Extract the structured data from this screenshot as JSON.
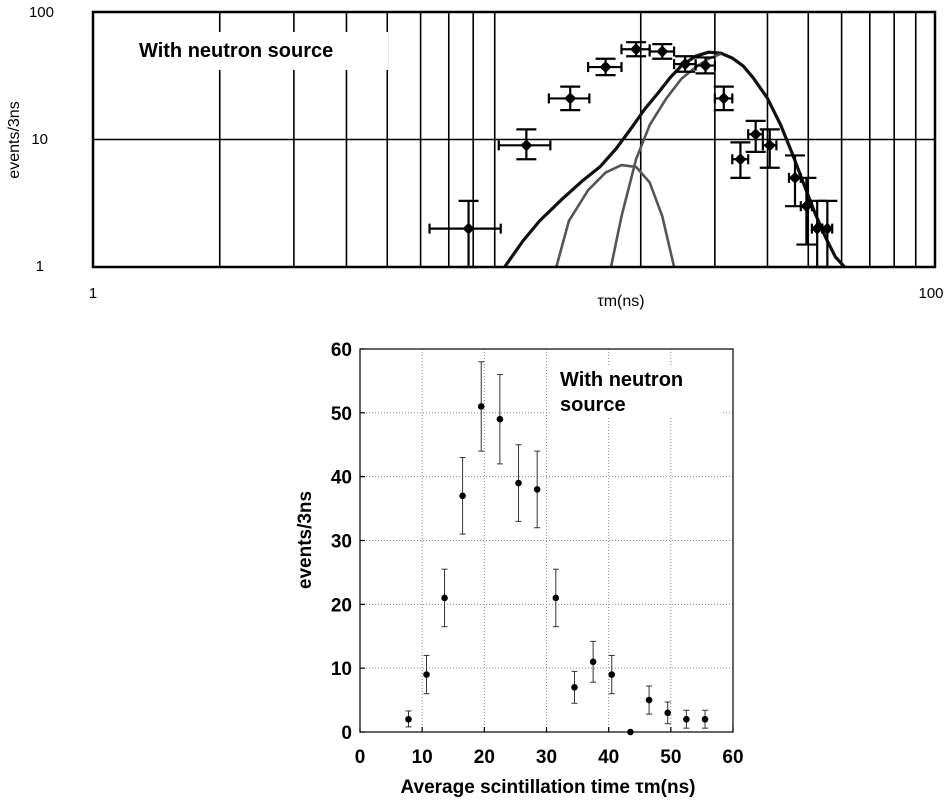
{
  "chart_data": [
    {
      "type": "scatter",
      "xlabel": "τm(ns)",
      "ylabel": "events/3ns",
      "x_scale": "log",
      "y_scale": "log",
      "xlim": [
        1,
        100
      ],
      "ylim": [
        1,
        100
      ],
      "grid": "x: all decade subdivisions; y: decades",
      "annotation": "With neutron source",
      "x_tick_labels": [
        "1",
        "100"
      ],
      "y_tick_labels": [
        "100",
        "10",
        "1"
      ],
      "points": [
        {
          "x": 7.8,
          "y": 2,
          "x_err": 1.5,
          "y_err_low": 1,
          "y_err_high": 1.3
        },
        {
          "x": 10.7,
          "y": 9,
          "x_err": 1.5,
          "y_err_low": 2,
          "y_err_high": 3
        },
        {
          "x": 13.6,
          "y": 21,
          "x_err": 1.5,
          "y_err_low": 4,
          "y_err_high": 5
        },
        {
          "x": 16.5,
          "y": 37,
          "x_err": 1.5,
          "y_err_low": 5,
          "y_err_high": 6
        },
        {
          "x": 19.5,
          "y": 51,
          "x_err": 1.5,
          "y_err_low": 6,
          "y_err_high": 7
        },
        {
          "x": 22.5,
          "y": 49,
          "x_err": 1.5,
          "y_err_low": 6,
          "y_err_high": 7
        },
        {
          "x": 25.5,
          "y": 39,
          "x_err": 1.5,
          "y_err_low": 5,
          "y_err_high": 6
        },
        {
          "x": 28.5,
          "y": 38,
          "x_err": 1.5,
          "y_err_low": 5,
          "y_err_high": 6
        },
        {
          "x": 31.5,
          "y": 21,
          "x_err": 1.5,
          "y_err_low": 4,
          "y_err_high": 5
        },
        {
          "x": 34.5,
          "y": 7,
          "x_err": 1.5,
          "y_err_low": 2,
          "y_err_high": 2.5
        },
        {
          "x": 37.5,
          "y": 11,
          "x_err": 1.5,
          "y_err_low": 3,
          "y_err_high": 3
        },
        {
          "x": 40.5,
          "y": 9,
          "x_err": 1.5,
          "y_err_low": 3,
          "y_err_high": 3
        },
        {
          "x": 46.5,
          "y": 5,
          "x_err": 1.5,
          "y_err_low": 2,
          "y_err_high": 2.5
        },
        {
          "x": 49.5,
          "y": 3,
          "x_err": 1.5,
          "y_err_low": 1.5,
          "y_err_high": 2
        },
        {
          "x": 52.5,
          "y": 2,
          "x_err": 1.5,
          "y_err_low": 1,
          "y_err_high": 1.3
        },
        {
          "x": 55.5,
          "y": 2,
          "x_err": 1.5,
          "y_err_low": 1,
          "y_err_high": 1.3
        }
      ],
      "fits": [
        {
          "component": "sum",
          "color": "#111111",
          "x": [
            9.5,
            10.5,
            11.5,
            13,
            14.5,
            16,
            17.5,
            19,
            20.5,
            22,
            23.5,
            25,
            27,
            29,
            31,
            33,
            35,
            37,
            40,
            43,
            46,
            49,
            52,
            55,
            58,
            61
          ],
          "y": [
            1,
            1.6,
            2.3,
            3.4,
            4.7,
            6.1,
            8.5,
            12.3,
            17.5,
            23.2,
            30.6,
            38,
            45,
            48.4,
            47.5,
            43.5,
            37.8,
            30.5,
            21,
            13,
            7.5,
            4.3,
            2.6,
            1.7,
            1.2,
            1
          ]
        },
        {
          "component": "fast",
          "color": "#555555",
          "x": [
            12.6,
            13.5,
            15,
            16.5,
            18,
            19.5,
            21,
            22.5,
            24
          ],
          "y": [
            1,
            2.3,
            4,
            5.5,
            6.3,
            6.1,
            4.6,
            2.5,
            1
          ]
        },
        {
          "component": "slow",
          "color": "#555555",
          "x": [
            17,
            18,
            19.5,
            21,
            23,
            25,
            27,
            29,
            31
          ],
          "y": [
            1,
            2.5,
            7,
            13,
            21,
            30,
            37,
            43,
            47
          ]
        }
      ]
    },
    {
      "type": "scatter",
      "xlabel": "Average scintillation time τm(ns)",
      "ylabel": "events/3ns",
      "xlim": [
        0,
        60
      ],
      "ylim": [
        0,
        60
      ],
      "grid": true,
      "annotation": "With neutron source",
      "x_ticks": [
        0,
        10,
        20,
        30,
        40,
        50,
        60
      ],
      "y_ticks": [
        0,
        10,
        20,
        30,
        40,
        50,
        60
      ],
      "points": [
        {
          "x": 7.8,
          "y": 2,
          "y_err_low": 1.2,
          "y_err_high": 1.3
        },
        {
          "x": 10.7,
          "y": 9,
          "y_err_low": 3,
          "y_err_high": 3
        },
        {
          "x": 13.6,
          "y": 21,
          "y_err_low": 4.5,
          "y_err_high": 4.5
        },
        {
          "x": 16.5,
          "y": 37,
          "y_err_low": 6,
          "y_err_high": 6
        },
        {
          "x": 19.5,
          "y": 51,
          "y_err_low": 7,
          "y_err_high": 7
        },
        {
          "x": 22.5,
          "y": 49,
          "y_err_low": 7,
          "y_err_high": 7
        },
        {
          "x": 25.5,
          "y": 39,
          "y_err_low": 6,
          "y_err_high": 6
        },
        {
          "x": 28.5,
          "y": 38,
          "y_err_low": 6,
          "y_err_high": 6
        },
        {
          "x": 31.5,
          "y": 21,
          "y_err_low": 4.5,
          "y_err_high": 4.5
        },
        {
          "x": 34.5,
          "y": 7,
          "y_err_low": 2.5,
          "y_err_high": 2.5
        },
        {
          "x": 37.5,
          "y": 11,
          "y_err_low": 3.2,
          "y_err_high": 3.2
        },
        {
          "x": 40.5,
          "y": 9,
          "y_err_low": 3,
          "y_err_high": 3
        },
        {
          "x": 43.5,
          "y": 0,
          "y_err_low": 0,
          "y_err_high": 0
        },
        {
          "x": 46.5,
          "y": 5,
          "y_err_low": 2.2,
          "y_err_high": 2.2
        },
        {
          "x": 49.5,
          "y": 3,
          "y_err_low": 1.7,
          "y_err_high": 1.7
        },
        {
          "x": 52.5,
          "y": 2,
          "y_err_low": 1.4,
          "y_err_high": 1.4
        },
        {
          "x": 55.5,
          "y": 2,
          "y_err_low": 1.4,
          "y_err_high": 1.4
        }
      ]
    }
  ]
}
